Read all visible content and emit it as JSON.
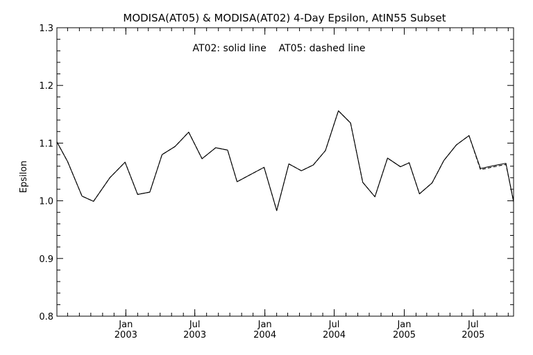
{
  "chart_data": {
    "type": "line",
    "title": "MODISA(AT05) & MODISA(AT02) 4-Day Epsilon, AtIN55 Subset",
    "annotation": "AT02: solid line    AT05: dashed line",
    "xlabel": "",
    "ylabel": "Epsilon",
    "xlim": [
      "2002-07-04",
      "2005-10-15"
    ],
    "ylim": [
      0.8,
      1.3
    ],
    "yticks": [
      "0.8",
      "0.9",
      "1.0",
      "1.1",
      "1.2",
      "1.3"
    ],
    "yminor_step": 0.02,
    "xticks": [
      {
        "date": "2003-01-01",
        "month": "Jan",
        "year": "2003"
      },
      {
        "date": "2003-07-01",
        "month": "Jul",
        "year": "2003"
      },
      {
        "date": "2004-01-01",
        "month": "Jan",
        "year": "2004"
      },
      {
        "date": "2004-07-01",
        "month": "Jul",
        "year": "2004"
      },
      {
        "date": "2005-01-01",
        "month": "Jan",
        "year": "2005"
      },
      {
        "date": "2005-07-01",
        "month": "Jul",
        "year": "2005"
      }
    ],
    "grid": false,
    "series": [
      {
        "name": "AT02",
        "style": "solid",
        "x": [
          "2002-07-04",
          "2002-08-01",
          "2002-09-08",
          "2002-10-08",
          "2002-11-20",
          "2002-12-30",
          "2003-02-01",
          "2003-03-05",
          "2003-04-06",
          "2003-05-10",
          "2003-06-15",
          "2003-07-20",
          "2003-08-25",
          "2003-09-25",
          "2003-10-20",
          "2003-12-30",
          "2004-02-01",
          "2004-03-04",
          "2004-04-06",
          "2004-05-07",
          "2004-06-08",
          "2004-07-12",
          "2004-08-13",
          "2004-09-14",
          "2004-10-16",
          "2004-11-18",
          "2004-12-22",
          "2005-01-14",
          "2005-02-10",
          "2005-03-15",
          "2005-04-15",
          "2005-05-18",
          "2005-06-20",
          "2005-07-20",
          "2005-08-25",
          "2005-09-25",
          "2005-10-15"
        ],
        "y": [
          1.102,
          1.068,
          1.008,
          0.999,
          1.04,
          1.067,
          1.011,
          1.015,
          1.08,
          1.094,
          1.119,
          1.073,
          1.092,
          1.088,
          1.033,
          1.058,
          0.983,
          1.064,
          1.052,
          1.062,
          1.087,
          1.156,
          1.135,
          1.032,
          1.007,
          1.074,
          1.059,
          1.066,
          1.012,
          1.031,
          1.07,
          1.097,
          1.113,
          1.056,
          1.061,
          1.065,
          0.998
        ]
      },
      {
        "name": "AT05",
        "style": "dashed",
        "x": [
          "2002-07-04",
          "2002-08-01",
          "2002-09-08",
          "2002-10-08",
          "2002-11-20",
          "2002-12-30",
          "2003-02-01",
          "2003-03-05",
          "2003-04-06",
          "2003-05-10",
          "2003-06-15",
          "2003-07-20",
          "2003-08-25",
          "2003-09-25",
          "2003-10-20",
          "2003-12-30",
          "2004-02-01",
          "2004-03-04",
          "2004-04-06",
          "2004-05-07",
          "2004-06-08",
          "2004-07-12",
          "2004-08-13",
          "2004-09-14",
          "2004-10-16",
          "2004-11-18",
          "2004-12-22",
          "2005-01-14",
          "2005-02-10",
          "2005-03-15",
          "2005-04-15",
          "2005-05-18",
          "2005-06-20",
          "2005-07-20",
          "2005-08-25",
          "2005-09-25",
          "2005-10-15"
        ],
        "y": [
          1.102,
          1.068,
          1.008,
          0.999,
          1.04,
          1.067,
          1.011,
          1.015,
          1.08,
          1.094,
          1.119,
          1.073,
          1.092,
          1.088,
          1.033,
          1.058,
          0.983,
          1.064,
          1.052,
          1.062,
          1.087,
          1.156,
          1.135,
          1.032,
          1.007,
          1.074,
          1.059,
          1.066,
          1.012,
          1.031,
          1.07,
          1.097,
          1.113,
          1.054,
          1.059,
          1.063,
          1.0
        ]
      }
    ]
  }
}
